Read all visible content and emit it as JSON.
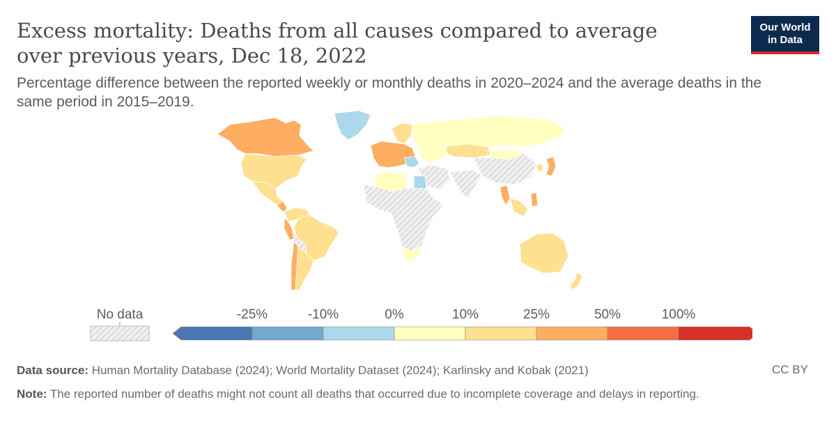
{
  "header": {
    "title": "Excess mortality: Deaths from all causes compared to average over previous years, Dec 18, 2022",
    "subtitle": "Percentage difference between the reported weekly or monthly deaths in 2020–2024 and the average deaths in the same period in 2015–2019."
  },
  "logo": {
    "line1": "Our World",
    "line2": "in Data"
  },
  "legend": {
    "no_data_label": "No data",
    "ticks": [
      "-25%",
      "-10%",
      "0%",
      "10%",
      "25%",
      "50%",
      "100%"
    ],
    "colors": [
      "#4a77b4",
      "#74a9cf",
      "#abd9e9",
      "#ffffbf",
      "#fee090",
      "#fdae61",
      "#f46d43",
      "#d73027"
    ],
    "no_data_color": "#e8e8e8"
  },
  "footer": {
    "source_label": "Data source:",
    "source_text": "Human Mortality Database (2024); World Mortality Dataset (2024); Karlinsky and Kobak (2021)",
    "license": "CC BY",
    "note_label": "Note:",
    "note_text": "The reported number of deaths might not count all deaths that occurred due to incomplete coverage and delays in reporting."
  },
  "regions": [
    {
      "name": "Canada",
      "category": "25% to 50%"
    },
    {
      "name": "United States",
      "category": "10% to 25%"
    },
    {
      "name": "Greenland",
      "category": "-10% to 0%"
    },
    {
      "name": "Mexico",
      "category": "10% to 25%"
    },
    {
      "name": "Central America",
      "category": "25% to 50%"
    },
    {
      "name": "Colombia / Venezuela",
      "category": "10% to 25%"
    },
    {
      "name": "Peru",
      "category": "25% to 50%"
    },
    {
      "name": "Brazil",
      "category": "10% to 25%"
    },
    {
      "name": "Bolivia / Paraguay",
      "category": "No data"
    },
    {
      "name": "Chile",
      "category": "25% to 50%"
    },
    {
      "name": "Argentina",
      "category": "10% to 25%"
    },
    {
      "name": "Europe (west)",
      "category": "25% to 50%"
    },
    {
      "name": "Nordic countries",
      "category": "10% to 25%"
    },
    {
      "name": "Balkans",
      "category": "-10% to 0%"
    },
    {
      "name": "Russia",
      "category": "0% to 10%"
    },
    {
      "name": "Central Asia",
      "category": "0% to 10%"
    },
    {
      "name": "Kazakhstan",
      "category": "10% to 25%"
    },
    {
      "name": "Algeria / Tunisia",
      "category": "0% to 10%"
    },
    {
      "name": "Egypt",
      "category": "-10% to 0%"
    },
    {
      "name": "Sub-Saharan Africa",
      "category": "No data"
    },
    {
      "name": "South Africa",
      "category": "0% to 10%"
    },
    {
      "name": "Middle East",
      "category": "No data"
    },
    {
      "name": "India / South Asia",
      "category": "No data"
    },
    {
      "name": "China",
      "category": "No data"
    },
    {
      "name": "Mongolia",
      "category": "0% to 10%"
    },
    {
      "name": "Thailand",
      "category": "25% to 50%"
    },
    {
      "name": "Southeast Asia",
      "category": "10% to 25%"
    },
    {
      "name": "Japan",
      "category": "25% to 50%"
    },
    {
      "name": "South Korea",
      "category": "10% to 25%"
    },
    {
      "name": "Philippines",
      "category": "25% to 50%"
    },
    {
      "name": "Australia",
      "category": "10% to 25%"
    },
    {
      "name": "New Zealand",
      "category": "10% to 25%"
    }
  ]
}
